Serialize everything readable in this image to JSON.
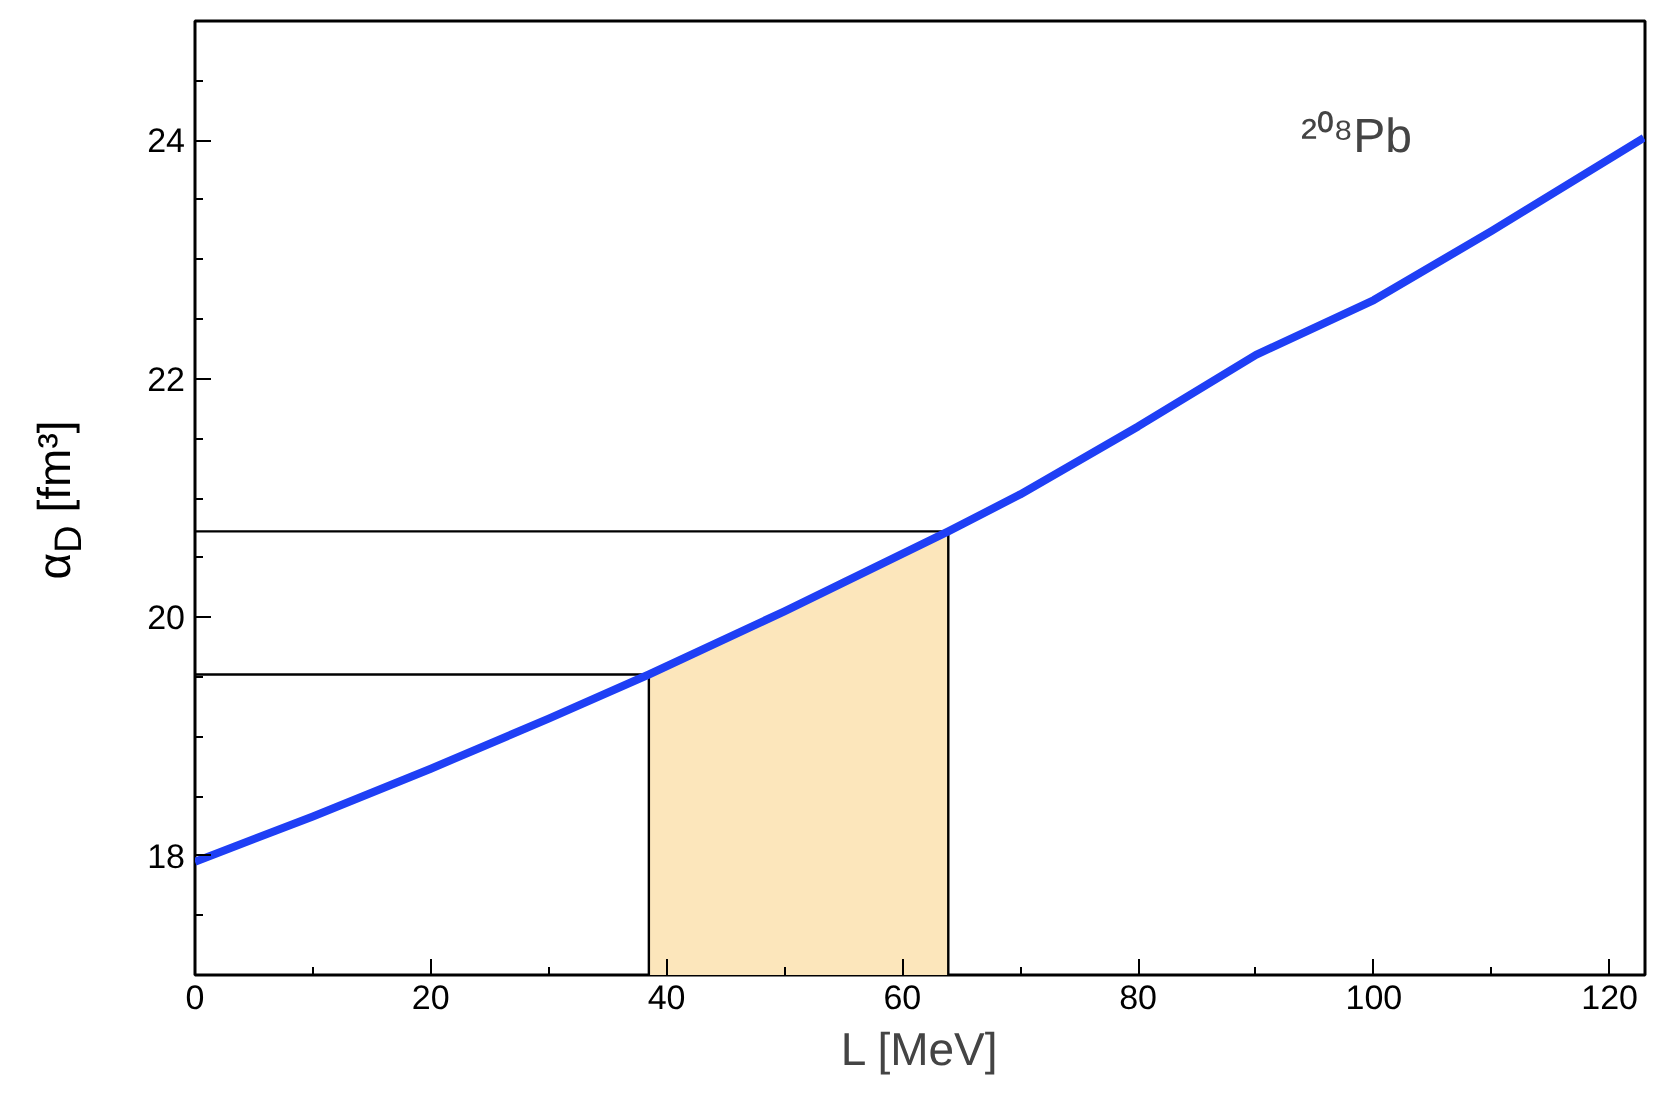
{
  "chart_data": {
    "type": "line",
    "xlabel": "L [MeV]",
    "ylabel": "α$_{D}$ [fm³]",
    "annotations": [
      "²⁰⁸Pb"
    ],
    "xlim": [
      0,
      123
    ],
    "ylim": [
      17,
      25
    ],
    "xticks": [
      0,
      20,
      40,
      60,
      80,
      100,
      120
    ],
    "yticks": [
      18,
      20,
      22,
      24
    ],
    "grid": false,
    "legend": false,
    "series": [
      {
        "type": "area",
        "color": "#fce6bb",
        "x": [
          38.5,
          45,
          50,
          55,
          60,
          63.9
        ],
        "values": [
          19.52,
          19.82,
          20.05,
          20.33,
          20.53,
          20.72
        ]
      },
      {
        "type": "line",
        "color": "#000000",
        "x": [
          0,
          38.5,
          38.5
        ],
        "values": [
          19.52,
          19.52,
          17
        ]
      },
      {
        "type": "line",
        "color": "#000000",
        "x": [
          0,
          63.9,
          63.9
        ],
        "values": [
          20.72,
          20.72,
          17
        ]
      },
      {
        "type": "line",
        "color": "#1f3ff5",
        "x": [
          0,
          10,
          20,
          30,
          38.5,
          50,
          63.9,
          70,
          80,
          90,
          100,
          110,
          122.9
        ],
        "values": [
          17.95,
          18.33,
          18.73,
          19.15,
          19.52,
          20.05,
          20.72,
          21.03,
          21.6,
          22.2,
          22.66,
          23.24,
          24.02
        ]
      }
    ]
  }
}
